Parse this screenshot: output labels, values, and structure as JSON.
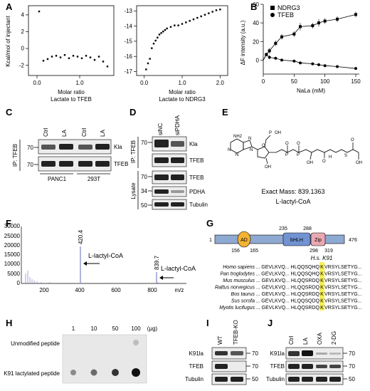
{
  "panels": {
    "A": {
      "letter": "A",
      "ylabel": "Kcal/mol of injectant",
      "left": {
        "xlabel_1": "Molar ratio",
        "xlabel_2": "Lactate to TFEB",
        "yticks": [
          "4",
          "2",
          "0",
          "-2"
        ],
        "xticks": [
          "0.0",
          "1.0"
        ]
      },
      "right": {
        "xlabel_1": "Molar ratio",
        "xlabel_2": "Lactate to NDRG3",
        "yticks": [
          "-13",
          "-14",
          "-15",
          "-16",
          "-17"
        ],
        "xticks": [
          "0.0",
          "1.0",
          "2.0"
        ]
      }
    },
    "B": {
      "letter": "B",
      "ylabel": "ΔF intensity (a.u.)",
      "xlabel": "NaLa (mM)"
    },
    "C": {
      "letter": "C",
      "ip_label": "IP: TFEB",
      "lanes": [
        "Ctrl",
        "LA",
        "Ctrl",
        "LA"
      ],
      "bands": [
        "Kla",
        "TFEB"
      ],
      "mw": [
        "70",
        "70"
      ],
      "cells": [
        "PANC1",
        "293T"
      ]
    },
    "D": {
      "letter": "D",
      "lanes": [
        "siNC",
        "siPDHA"
      ],
      "ip_label": "IP: TFEB",
      "lysate_label": "Lysate",
      "bands": [
        "Kla",
        "TFEB",
        "TFEB",
        "PDHA",
        "Tubulin"
      ],
      "mw": [
        "70",
        "70",
        "70",
        "34",
        "50"
      ]
    },
    "E": {
      "letter": "E",
      "exact_mass": "Exact Mass: 839.1363",
      "compound": "L-lactyl-CoA",
      "atoms": {
        "n": "N",
        "nh2": "NH2",
        "o": "O",
        "p": "P",
        "oh": "OH",
        "s": "S",
        "h": "H"
      }
    },
    "F": {
      "letter": "F",
      "xlabel": "m/z",
      "yticks": [
        "30000",
        "25000",
        "20000",
        "15000",
        "10000",
        "5000",
        "0"
      ],
      "xticks": [
        "200",
        "400",
        "600",
        "800"
      ],
      "peak1_label": "420.4",
      "peak2_label": "839.7",
      "annot1": "L-lactyl-CoA",
      "annot2": "L-lactyl-CoA"
    },
    "G": {
      "letter": "G",
      "domains": [
        "AD",
        "bHLH",
        "Zip"
      ],
      "positions": [
        "1",
        "156",
        "165",
        "235",
        "288",
        "298",
        "319",
        "476"
      ],
      "site_label": "H.s. K91",
      "species": [
        "Homo sapiens",
        "Pan troglodytes",
        "Mus musculus",
        "Rattus norvegicus",
        "Bos taurus",
        "Sus scrofa",
        "Myotis lucifugus"
      ],
      "sequences": [
        {
          "a": "... GEVLKVQ... HLQQSQHQ",
          "k": "K",
          "b": "VRSYLSETYG..."
        },
        {
          "a": "... GEVLKVQ... HLQQSQHQ",
          "k": "K",
          "b": "VRSYLSETYG..."
        },
        {
          "a": "... GEVLKVQ... HLQQSRDQ",
          "k": "K",
          "b": "VRSYLSETYG..."
        },
        {
          "a": "... GEVLKVQ... HLQQSRDQ",
          "k": "K",
          "b": "VRSYLSETYG..."
        },
        {
          "a": "... GEVLKVQ... HLQQSRDQ",
          "k": "K",
          "b": "VRSYLSETYG..."
        },
        {
          "a": "... GEVLKVQ... HLQQSQDQ",
          "k": "K",
          "b": "VRSYLSETYG..."
        },
        {
          "a": "... GEVLKVQ... HLQQSRDQ",
          "k": "K",
          "b": "VRSYLSETYG..."
        }
      ]
    },
    "H": {
      "letter": "H",
      "amounts": [
        "1",
        "10",
        "50",
        "100"
      ],
      "unit": "(μg)",
      "row1": "Unmodified peptide",
      "row2": "K91 lactylated peptide"
    },
    "I": {
      "letter": "I",
      "lanes": [
        "WT",
        "TFEB-KO"
      ],
      "bands": [
        "K91la",
        "TFEB",
        "Tubulin"
      ],
      "mw": [
        "70",
        "70",
        "50"
      ]
    },
    "J": {
      "letter": "J",
      "lanes": [
        "Ctrl",
        "LA",
        "OXA",
        "2-DG"
      ],
      "bands": [
        "K91la",
        "TFEB",
        "Tubulin"
      ],
      "mw": [
        "70",
        "70",
        "50"
      ]
    }
  },
  "chart_data": [
    {
      "type": "scatter",
      "panel": "A-left",
      "xlabel": "Molar ratio Lactate to TFEB",
      "ylabel": "Kcal/mol of injectant",
      "xlim": [
        -0.2,
        1.8
      ],
      "ylim": [
        -3,
        5.5
      ],
      "x": [
        0.05,
        0.15,
        0.25,
        0.35,
        0.45,
        0.55,
        0.65,
        0.75,
        0.85,
        0.95,
        1.05,
        1.15,
        1.25,
        1.35,
        1.45,
        1.55,
        1.65
      ],
      "y": [
        4.8,
        -1.2,
        -1.0,
        -0.7,
        -0.6,
        -0.8,
        -0.5,
        -0.9,
        -0.6,
        -0.7,
        -0.9,
        -0.6,
        -0.8,
        -1.1,
        -0.7,
        -1.3,
        -1.9
      ]
    },
    {
      "type": "scatter",
      "panel": "A-right",
      "xlabel": "Molar ratio Lactate to NDRG3",
      "ylabel": "",
      "xlim": [
        -0.2,
        2.2
      ],
      "ylim": [
        -17.3,
        -12.7
      ],
      "x": [
        0.05,
        0.1,
        0.15,
        0.2,
        0.25,
        0.3,
        0.35,
        0.4,
        0.45,
        0.5,
        0.55,
        0.6,
        0.7,
        0.8,
        0.9,
        1.0,
        1.1,
        1.2,
        1.3,
        1.4,
        1.5,
        1.6,
        1.7,
        1.8,
        1.9,
        2.0
      ],
      "y": [
        -16.9,
        -16.5,
        -16.2,
        -15.5,
        -15.2,
        -15.0,
        -14.8,
        -14.6,
        -14.5,
        -14.4,
        -14.3,
        -14.2,
        -14.1,
        -14.0,
        -14.0,
        -13.9,
        -13.8,
        -13.7,
        -13.6,
        -13.5,
        -13.4,
        -13.3,
        -13.2,
        -13.1,
        -13.0,
        -12.95
      ]
    },
    {
      "type": "line",
      "panel": "B",
      "xlabel": "NaLa (mM)",
      "ylabel": "ΔF intensity (a.u.)",
      "xlim": [
        0,
        150
      ],
      "ylim": [
        -15,
        60
      ],
      "xticks": [
        0,
        50,
        100,
        150
      ],
      "yticks": [
        0,
        20,
        40,
        60
      ],
      "series": [
        {
          "name": "NDRG3",
          "marker": "square",
          "x": [
            5,
            10,
            20,
            30,
            50,
            60,
            80,
            90,
            100,
            120,
            150
          ],
          "y": [
            6,
            10,
            18,
            25,
            28,
            36,
            37,
            40,
            42,
            44,
            49
          ],
          "err": [
            2,
            3,
            3,
            3,
            3,
            4,
            3,
            4,
            3,
            3,
            3
          ]
        },
        {
          "name": "TFEB",
          "marker": "circle",
          "x": [
            5,
            10,
            20,
            30,
            50,
            60,
            80,
            90,
            100,
            120,
            150
          ],
          "y": [
            6,
            3,
            2,
            0,
            -1,
            -3,
            -4,
            -5,
            -6,
            -7,
            -9
          ],
          "err": [
            1,
            2,
            1,
            1,
            1,
            1,
            1,
            1,
            1,
            1,
            1
          ]
        }
      ]
    }
  ]
}
